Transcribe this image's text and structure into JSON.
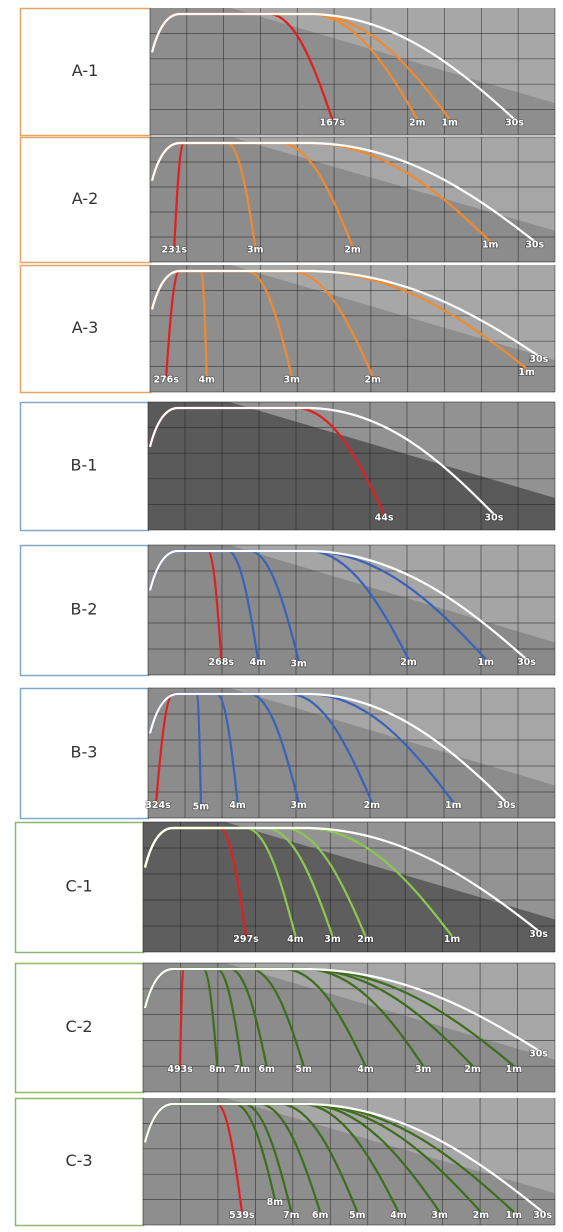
{
  "panels": [
    {
      "label": "A-1",
      "curves": [
        "167s",
        "2m",
        "1m",
        "30s"
      ]
    },
    {
      "label": "A-2",
      "curves": [
        "231s",
        "3m",
        "2m",
        "1m",
        "30s"
      ]
    },
    {
      "label": "A-3",
      "curves": [
        "276s",
        "4m",
        "3m",
        "2m",
        "1m",
        "30s"
      ]
    },
    {
      "label": "B-1",
      "curves": [
        "44s",
        "30s"
      ]
    },
    {
      "label": "B-2",
      "curves": [
        "268s",
        "4m",
        "3m",
        "2m",
        "1m",
        "30s"
      ]
    },
    {
      "label": "B-3",
      "curves": [
        "324s",
        "5m",
        "4m",
        "3m",
        "2m",
        "1m",
        "30s"
      ]
    },
    {
      "label": "C-1",
      "curves": [
        "297s",
        "4m",
        "3m",
        "2m",
        "1m",
        "30s"
      ]
    },
    {
      "label": "C-2",
      "curves": [
        "493s",
        "8m",
        "7m",
        "6m",
        "5m",
        "4m",
        "3m",
        "2m",
        "1m",
        "30s"
      ]
    },
    {
      "label": "C-3",
      "curves": [
        "8m",
        "539s",
        "7m",
        "6m",
        "5m",
        "4m",
        "3m",
        "2m",
        "1m",
        "30s"
      ]
    }
  ]
}
